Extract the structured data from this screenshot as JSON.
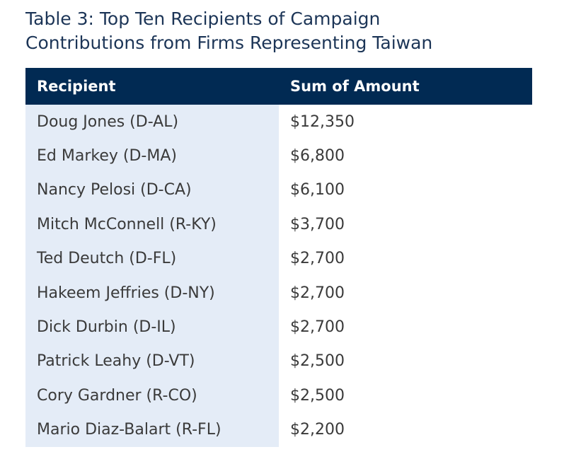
{
  "title": {
    "line1": "Table 3: Top Ten Recipients of Campaign",
    "line2": "Contributions from Firms Representing Taiwan"
  },
  "table": {
    "headers": {
      "recipient": "Recipient",
      "amount": "Sum of Amount"
    },
    "rows": [
      {
        "recipient": "Doug Jones (D-AL)",
        "amount": "$12,350"
      },
      {
        "recipient": "Ed Markey (D-MA)",
        "amount": "$6,800"
      },
      {
        "recipient": "Nancy Pelosi (D-CA)",
        "amount": "$6,100"
      },
      {
        "recipient": "Mitch McConnell (R-KY)",
        "amount": "$3,700"
      },
      {
        "recipient": "Ted Deutch (D-FL)",
        "amount": "$2,700"
      },
      {
        "recipient": "Hakeem Jeffries (D-NY)",
        "amount": "$2,700"
      },
      {
        "recipient": "Dick Durbin (D-IL)",
        "amount": "$2,700"
      },
      {
        "recipient": "Patrick Leahy (D-VT)",
        "amount": "$2,500"
      },
      {
        "recipient": "Cory Gardner (R-CO)",
        "amount": "$2,500"
      },
      {
        "recipient": "Mario Diaz-Balart (R-FL)",
        "amount": "$2,200"
      }
    ]
  },
  "colors": {
    "title": "#1c3557",
    "header_background": "#012a53",
    "recipient_column_background": "#e4ecf7"
  }
}
